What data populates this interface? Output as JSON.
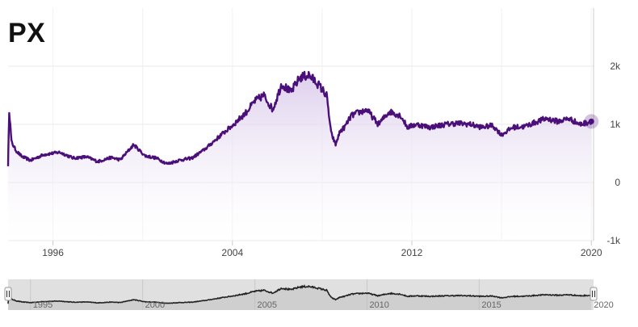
{
  "header": {
    "symbol": "PX"
  },
  "colors": {
    "line": "#4b0f7a",
    "area_top": "#d9c9ea",
    "area_bottom": "#ffffff",
    "navigator_bg": "#e0e0e0",
    "navigator_line": "#222222"
  },
  "chart_data": {
    "type": "area",
    "title": "PX",
    "xlabel": "",
    "ylabel": "",
    "xlim": [
      1994.0,
      2020.1
    ],
    "ylim": [
      -1000,
      3000
    ],
    "y_ticks": [
      -1000,
      0,
      1000,
      2000
    ],
    "y_tick_labels": [
      "-1k",
      "0",
      "1k",
      "2k"
    ],
    "x_ticks": [
      1996,
      2004,
      2012,
      2020
    ],
    "x_tick_labels": [
      "1996",
      "2004",
      "2012",
      "2020"
    ],
    "grid": "horizontal",
    "series": [
      {
        "x": [
          1994.0,
          1994.05,
          1994.15,
          1994.35,
          1994.6,
          1995.0,
          1995.6,
          1996.3,
          1996.9,
          1997.5,
          1998.0,
          1998.6,
          1999.0,
          1999.6,
          2000.1,
          2000.6,
          2001.1,
          2001.6,
          2002.2,
          2002.8,
          2003.5,
          2004.0,
          2004.6,
          2005.0,
          2005.4,
          2005.8,
          2006.2,
          2006.6,
          2007.0,
          2007.4,
          2007.8,
          2008.2,
          2008.4,
          2008.6,
          2008.8,
          2009.0,
          2009.3,
          2009.6,
          2010.0,
          2010.5,
          2011.0,
          2011.5,
          2011.8,
          2012.2,
          2012.8,
          2013.5,
          2014.0,
          2014.6,
          2015.1,
          2015.6,
          2016.0,
          2016.5,
          2017.0,
          2017.6,
          2018.0,
          2018.5,
          2019.0,
          2019.5,
          2020.0
        ],
        "y": [
          300,
          1250,
          700,
          550,
          450,
          380,
          480,
          520,
          420,
          440,
          360,
          430,
          390,
          650,
          460,
          420,
          320,
          380,
          420,
          580,
          820,
          980,
          1200,
          1400,
          1500,
          1250,
          1700,
          1550,
          1800,
          1850,
          1700,
          1500,
          850,
          650,
          880,
          950,
          1150,
          1200,
          1250,
          1000,
          1220,
          1150,
          950,
          1000,
          950,
          1000,
          1020,
          1000,
          950,
          980,
          820,
          950,
          960,
          1050,
          1100,
          1050,
          1100,
          1000,
          1050
        ]
      }
    ],
    "last_value_marker": true,
    "navigator": {
      "x_tick_labels": [
        "1995",
        "2000",
        "2005",
        "2010",
        "2015",
        "2020"
      ]
    }
  }
}
